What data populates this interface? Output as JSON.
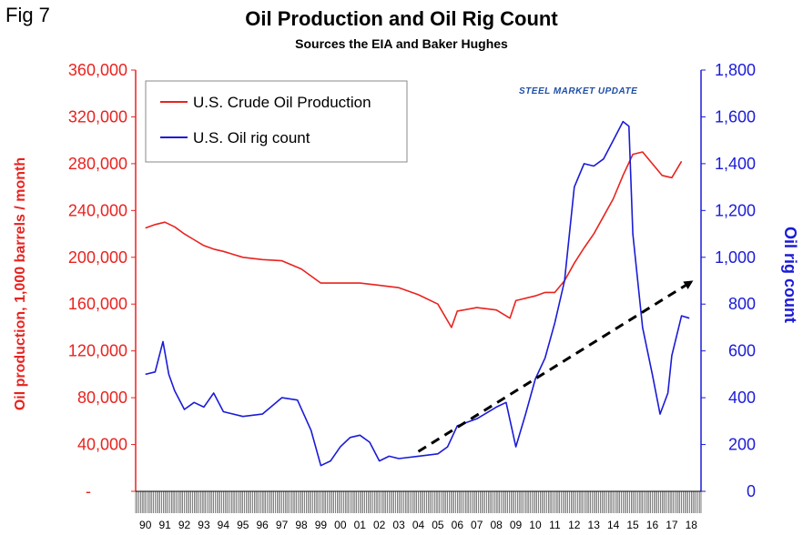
{
  "fig_label": "Fig 7",
  "watermark": "STEEL MARKET UPDATE",
  "colors": {
    "production": "#e8231f",
    "rigs": "#1b1bd8",
    "trend": "#000000"
  },
  "chart_data": {
    "type": "line",
    "title": "Oil Production and Oil Rig Count",
    "subtitle": "Sources the EIA and Baker Hughes",
    "ylabel_left": "Oil production, 1,000 barrels / month",
    "ylabel_right": "Oil rig count",
    "ylim_left": [
      0,
      360000
    ],
    "ylim_right": [
      0,
      1800
    ],
    "left_ticks": [
      "-",
      "40,000",
      "80,000",
      "120,000",
      "160,000",
      "200,000",
      "240,000",
      "280,000",
      "320,000",
      "360,000"
    ],
    "right_ticks": [
      "0",
      "200",
      "400",
      "600",
      "800",
      "1,000",
      "1,200",
      "1,400",
      "1,600",
      "1,800"
    ],
    "x_categories": [
      "90",
      "91",
      "92",
      "93",
      "94",
      "95",
      "96",
      "97",
      "98",
      "99",
      "00",
      "01",
      "02",
      "03",
      "04",
      "05",
      "06",
      "07",
      "08",
      "09",
      "10",
      "11",
      "12",
      "13",
      "14",
      "15",
      "16",
      "17",
      "18"
    ],
    "legend_position": "top-left",
    "grid": false,
    "series": [
      {
        "name": "U.S. Crude Oil Production",
        "axis": "left",
        "x": [
          1990,
          1990.5,
          1991,
          1991.5,
          1992,
          1992.5,
          1993,
          1993.5,
          1994,
          1995,
          1996,
          1997,
          1998,
          1999,
          2000,
          2001,
          2002,
          2003,
          2004,
          2005,
          2005.7,
          2006,
          2007,
          2008,
          2008.7,
          2009,
          2010,
          2010.5,
          2011,
          2011.5,
          2012,
          2012.5,
          2013,
          2013.5,
          2014,
          2014.5,
          2015,
          2015.5,
          2016,
          2016.5,
          2017,
          2017.5
        ],
        "y": [
          225000,
          228000,
          230000,
          226000,
          220000,
          215000,
          210000,
          207000,
          205000,
          200000,
          198000,
          197000,
          190000,
          178000,
          178000,
          178000,
          176000,
          174000,
          168000,
          160000,
          140000,
          154000,
          157000,
          155000,
          148000,
          163000,
          167000,
          170000,
          170000,
          180000,
          195000,
          208000,
          220000,
          235000,
          250000,
          270000,
          288000,
          290000,
          280000,
          270000,
          268000,
          282000
        ]
      },
      {
        "name": "U.S. Oil rig count",
        "axis": "right",
        "x": [
          1990,
          1990.5,
          1990.9,
          1991.2,
          1991.5,
          1992,
          1992.5,
          1993,
          1993.5,
          1994,
          1995,
          1996,
          1997,
          1997.8,
          1998.5,
          1999,
          1999.5,
          2000,
          2000.5,
          2001,
          2001.5,
          2002,
          2002.5,
          2003,
          2004,
          2005,
          2005.5,
          2006,
          2007,
          2008,
          2008.5,
          2009,
          2009.5,
          2010,
          2010.5,
          2011,
          2011.5,
          2012,
          2012.5,
          2013,
          2013.5,
          2014,
          2014.5,
          2014.8,
          2015,
          2015.5,
          2016,
          2016.4,
          2016.8,
          2017,
          2017.5,
          2017.9
        ],
        "y": [
          500,
          510,
          640,
          500,
          430,
          350,
          380,
          360,
          420,
          340,
          320,
          330,
          400,
          390,
          260,
          110,
          130,
          190,
          230,
          240,
          210,
          130,
          150,
          140,
          150,
          160,
          190,
          280,
          310,
          360,
          380,
          190,
          330,
          480,
          570,
          720,
          900,
          1300,
          1400,
          1390,
          1420,
          1500,
          1580,
          1560,
          1100,
          700,
          500,
          330,
          420,
          580,
          750,
          740
        ]
      }
    ],
    "trend_arrow": {
      "axis": "right",
      "x": [
        2004,
        2017.9
      ],
      "y": [
        170,
        890
      ]
    }
  }
}
